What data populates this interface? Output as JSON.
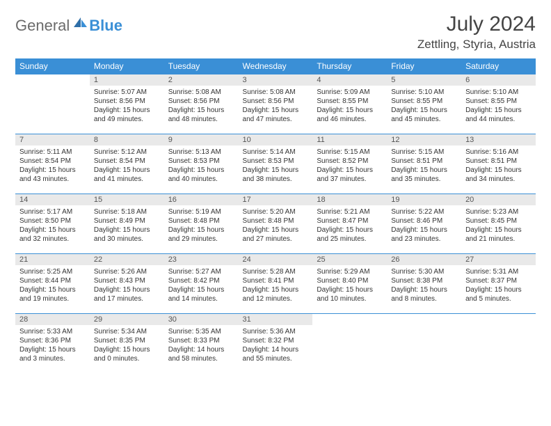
{
  "logo": {
    "text1": "General",
    "text2": "Blue"
  },
  "title": "July 2024",
  "location": "Zettling, Styria, Austria",
  "colors": {
    "header_bg": "#3a8fd6",
    "daynum_bg": "#e9e9e9",
    "border": "#3a8fd6",
    "text": "#333333"
  },
  "weekdays": [
    "Sunday",
    "Monday",
    "Tuesday",
    "Wednesday",
    "Thursday",
    "Friday",
    "Saturday"
  ],
  "weeks": [
    [
      {
        "n": "",
        "sr": "",
        "ss": "",
        "dl": ""
      },
      {
        "n": "1",
        "sr": "Sunrise: 5:07 AM",
        "ss": "Sunset: 8:56 PM",
        "dl": "Daylight: 15 hours and 49 minutes."
      },
      {
        "n": "2",
        "sr": "Sunrise: 5:08 AM",
        "ss": "Sunset: 8:56 PM",
        "dl": "Daylight: 15 hours and 48 minutes."
      },
      {
        "n": "3",
        "sr": "Sunrise: 5:08 AM",
        "ss": "Sunset: 8:56 PM",
        "dl": "Daylight: 15 hours and 47 minutes."
      },
      {
        "n": "4",
        "sr": "Sunrise: 5:09 AM",
        "ss": "Sunset: 8:55 PM",
        "dl": "Daylight: 15 hours and 46 minutes."
      },
      {
        "n": "5",
        "sr": "Sunrise: 5:10 AM",
        "ss": "Sunset: 8:55 PM",
        "dl": "Daylight: 15 hours and 45 minutes."
      },
      {
        "n": "6",
        "sr": "Sunrise: 5:10 AM",
        "ss": "Sunset: 8:55 PM",
        "dl": "Daylight: 15 hours and 44 minutes."
      }
    ],
    [
      {
        "n": "7",
        "sr": "Sunrise: 5:11 AM",
        "ss": "Sunset: 8:54 PM",
        "dl": "Daylight: 15 hours and 43 minutes."
      },
      {
        "n": "8",
        "sr": "Sunrise: 5:12 AM",
        "ss": "Sunset: 8:54 PM",
        "dl": "Daylight: 15 hours and 41 minutes."
      },
      {
        "n": "9",
        "sr": "Sunrise: 5:13 AM",
        "ss": "Sunset: 8:53 PM",
        "dl": "Daylight: 15 hours and 40 minutes."
      },
      {
        "n": "10",
        "sr": "Sunrise: 5:14 AM",
        "ss": "Sunset: 8:53 PM",
        "dl": "Daylight: 15 hours and 38 minutes."
      },
      {
        "n": "11",
        "sr": "Sunrise: 5:15 AM",
        "ss": "Sunset: 8:52 PM",
        "dl": "Daylight: 15 hours and 37 minutes."
      },
      {
        "n": "12",
        "sr": "Sunrise: 5:15 AM",
        "ss": "Sunset: 8:51 PM",
        "dl": "Daylight: 15 hours and 35 minutes."
      },
      {
        "n": "13",
        "sr": "Sunrise: 5:16 AM",
        "ss": "Sunset: 8:51 PM",
        "dl": "Daylight: 15 hours and 34 minutes."
      }
    ],
    [
      {
        "n": "14",
        "sr": "Sunrise: 5:17 AM",
        "ss": "Sunset: 8:50 PM",
        "dl": "Daylight: 15 hours and 32 minutes."
      },
      {
        "n": "15",
        "sr": "Sunrise: 5:18 AM",
        "ss": "Sunset: 8:49 PM",
        "dl": "Daylight: 15 hours and 30 minutes."
      },
      {
        "n": "16",
        "sr": "Sunrise: 5:19 AM",
        "ss": "Sunset: 8:48 PM",
        "dl": "Daylight: 15 hours and 29 minutes."
      },
      {
        "n": "17",
        "sr": "Sunrise: 5:20 AM",
        "ss": "Sunset: 8:48 PM",
        "dl": "Daylight: 15 hours and 27 minutes."
      },
      {
        "n": "18",
        "sr": "Sunrise: 5:21 AM",
        "ss": "Sunset: 8:47 PM",
        "dl": "Daylight: 15 hours and 25 minutes."
      },
      {
        "n": "19",
        "sr": "Sunrise: 5:22 AM",
        "ss": "Sunset: 8:46 PM",
        "dl": "Daylight: 15 hours and 23 minutes."
      },
      {
        "n": "20",
        "sr": "Sunrise: 5:23 AM",
        "ss": "Sunset: 8:45 PM",
        "dl": "Daylight: 15 hours and 21 minutes."
      }
    ],
    [
      {
        "n": "21",
        "sr": "Sunrise: 5:25 AM",
        "ss": "Sunset: 8:44 PM",
        "dl": "Daylight: 15 hours and 19 minutes."
      },
      {
        "n": "22",
        "sr": "Sunrise: 5:26 AM",
        "ss": "Sunset: 8:43 PM",
        "dl": "Daylight: 15 hours and 17 minutes."
      },
      {
        "n": "23",
        "sr": "Sunrise: 5:27 AM",
        "ss": "Sunset: 8:42 PM",
        "dl": "Daylight: 15 hours and 14 minutes."
      },
      {
        "n": "24",
        "sr": "Sunrise: 5:28 AM",
        "ss": "Sunset: 8:41 PM",
        "dl": "Daylight: 15 hours and 12 minutes."
      },
      {
        "n": "25",
        "sr": "Sunrise: 5:29 AM",
        "ss": "Sunset: 8:40 PM",
        "dl": "Daylight: 15 hours and 10 minutes."
      },
      {
        "n": "26",
        "sr": "Sunrise: 5:30 AM",
        "ss": "Sunset: 8:38 PM",
        "dl": "Daylight: 15 hours and 8 minutes."
      },
      {
        "n": "27",
        "sr": "Sunrise: 5:31 AM",
        "ss": "Sunset: 8:37 PM",
        "dl": "Daylight: 15 hours and 5 minutes."
      }
    ],
    [
      {
        "n": "28",
        "sr": "Sunrise: 5:33 AM",
        "ss": "Sunset: 8:36 PM",
        "dl": "Daylight: 15 hours and 3 minutes."
      },
      {
        "n": "29",
        "sr": "Sunrise: 5:34 AM",
        "ss": "Sunset: 8:35 PM",
        "dl": "Daylight: 15 hours and 0 minutes."
      },
      {
        "n": "30",
        "sr": "Sunrise: 5:35 AM",
        "ss": "Sunset: 8:33 PM",
        "dl": "Daylight: 14 hours and 58 minutes."
      },
      {
        "n": "31",
        "sr": "Sunrise: 5:36 AM",
        "ss": "Sunset: 8:32 PM",
        "dl": "Daylight: 14 hours and 55 minutes."
      },
      {
        "n": "",
        "sr": "",
        "ss": "",
        "dl": ""
      },
      {
        "n": "",
        "sr": "",
        "ss": "",
        "dl": ""
      },
      {
        "n": "",
        "sr": "",
        "ss": "",
        "dl": ""
      }
    ]
  ]
}
